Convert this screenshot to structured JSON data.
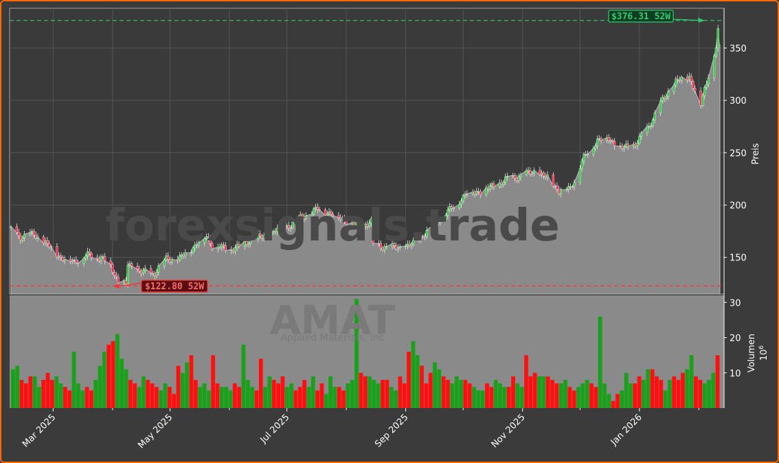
{
  "chart_data": {
    "type": "candlestick",
    "ticker": "AMAT",
    "company": "Applied Materials, Inc",
    "watermark": "forexsignals.trade",
    "ylabel": "Preis",
    "volume_label": "Volumen",
    "volume_unit": "10",
    "volume_exp": "6",
    "ylim": [
      115,
      388
    ],
    "yticks": [
      150,
      200,
      250,
      300,
      350
    ],
    "vol_ylim": [
      0,
      32
    ],
    "vol_yticks": [
      10,
      20,
      30
    ],
    "x_range": [
      "2025-02-07",
      "2026-02-12"
    ],
    "x_ticks": [
      {
        "date": "2025-03-01",
        "label": "Mar 2025"
      },
      {
        "date": "2025-05-01",
        "label": "May 2025"
      },
      {
        "date": "2025-07-01",
        "label": "Jul 2025"
      },
      {
        "date": "2025-09-01",
        "label": "Sep 2025"
      },
      {
        "date": "2025-11-01",
        "label": "Nov 2025"
      },
      {
        "date": "2026-01-01",
        "label": "Jan 2026"
      }
    ],
    "minor_ticks": [
      "2025-04-01",
      "2025-06-01",
      "2025-08-01",
      "2025-10-01",
      "2025-12-01",
      "2026-02-01"
    ],
    "high_52w": {
      "value": 376.31,
      "label": "$376.31 52W",
      "color": "#2ecc71"
    },
    "low_52w": {
      "value": 122.8,
      "label": "$122.80 52W",
      "color": "#ff3030"
    },
    "last_price": 353,
    "close_anchors": [
      [
        "2025-02-07",
        176
      ],
      [
        "2025-02-12",
        170
      ],
      [
        "2025-02-19",
        172
      ],
      [
        "2025-02-26",
        162
      ],
      [
        "2025-03-05",
        150
      ],
      [
        "2025-03-12",
        146
      ],
      [
        "2025-03-19",
        152
      ],
      [
        "2025-03-26",
        150
      ],
      [
        "2025-03-31",
        142
      ],
      [
        "2025-04-04",
        127
      ],
      [
        "2025-04-08",
        124
      ],
      [
        "2025-04-09",
        143
      ],
      [
        "2025-04-15",
        137
      ],
      [
        "2025-04-22",
        134
      ],
      [
        "2025-04-29",
        148
      ],
      [
        "2025-05-06",
        149
      ],
      [
        "2025-05-12",
        158
      ],
      [
        "2025-05-16",
        165
      ],
      [
        "2025-05-20",
        170
      ],
      [
        "2025-05-23",
        162
      ],
      [
        "2025-05-30",
        158
      ],
      [
        "2025-06-06",
        160
      ],
      [
        "2025-06-13",
        168
      ],
      [
        "2025-06-20",
        170
      ],
      [
        "2025-06-27",
        178
      ],
      [
        "2025-07-03",
        181
      ],
      [
        "2025-07-10",
        190
      ],
      [
        "2025-07-17",
        196
      ],
      [
        "2025-07-24",
        192
      ],
      [
        "2025-07-31",
        186
      ],
      [
        "2025-08-07",
        180
      ],
      [
        "2025-08-14",
        184
      ],
      [
        "2025-08-15",
        162
      ],
      [
        "2025-08-22",
        160
      ],
      [
        "2025-08-29",
        159
      ],
      [
        "2025-09-05",
        163
      ],
      [
        "2025-09-12",
        175
      ],
      [
        "2025-09-19",
        188
      ],
      [
        "2025-09-26",
        198
      ],
      [
        "2025-10-03",
        212
      ],
      [
        "2025-10-10",
        213
      ],
      [
        "2025-10-17",
        218
      ],
      [
        "2025-10-24",
        225
      ],
      [
        "2025-10-31",
        228
      ],
      [
        "2025-11-07",
        232
      ],
      [
        "2025-11-14",
        226
      ],
      [
        "2025-11-20",
        214
      ],
      [
        "2025-11-26",
        216
      ],
      [
        "2025-12-03",
        245
      ],
      [
        "2025-12-10",
        262
      ],
      [
        "2025-12-16",
        264
      ],
      [
        "2025-12-22",
        254
      ],
      [
        "2025-12-30",
        258
      ],
      [
        "2026-01-06",
        276
      ],
      [
        "2026-01-13",
        300
      ],
      [
        "2026-01-20",
        318
      ],
      [
        "2026-01-27",
        323
      ],
      [
        "2026-02-02",
        296
      ],
      [
        "2026-02-06",
        325
      ],
      [
        "2026-02-10",
        350
      ],
      [
        "2026-02-11",
        365
      ]
    ],
    "volume_samples": [
      11,
      12,
      8,
      7,
      9,
      9,
      6,
      8,
      10,
      8,
      9,
      7,
      6,
      5,
      16,
      7,
      5,
      6,
      5,
      8,
      12,
      16,
      18,
      19,
      21,
      14,
      11,
      8,
      7,
      6,
      9,
      8,
      7,
      6,
      5,
      7,
      6,
      4,
      12,
      10,
      13,
      15,
      8,
      6,
      7,
      5,
      15,
      7,
      6,
      6,
      5,
      7,
      6,
      18,
      8,
      6,
      5,
      14,
      6,
      9,
      8,
      7,
      9,
      6,
      7,
      5,
      6,
      8,
      6,
      9,
      5,
      7,
      4,
      9,
      6,
      6,
      5,
      7,
      8,
      31,
      10,
      9,
      9,
      8,
      7,
      8,
      8,
      6,
      5,
      9,
      7,
      16,
      19,
      15,
      12,
      7,
      10,
      13,
      11,
      9,
      8,
      7,
      9,
      8,
      8,
      7,
      6,
      5,
      5,
      7,
      6,
      8,
      7,
      6,
      6,
      9,
      7,
      6,
      15,
      9,
      10,
      9,
      9,
      9,
      8,
      7,
      7,
      8,
      6,
      5,
      6,
      7,
      8,
      7,
      6,
      26,
      7,
      4,
      2,
      4,
      5,
      10,
      7,
      7,
      9,
      8,
      11,
      11,
      9,
      8,
      5,
      8,
      9,
      8,
      10,
      11,
      15,
      9,
      8,
      7,
      8,
      10,
      15
    ]
  }
}
